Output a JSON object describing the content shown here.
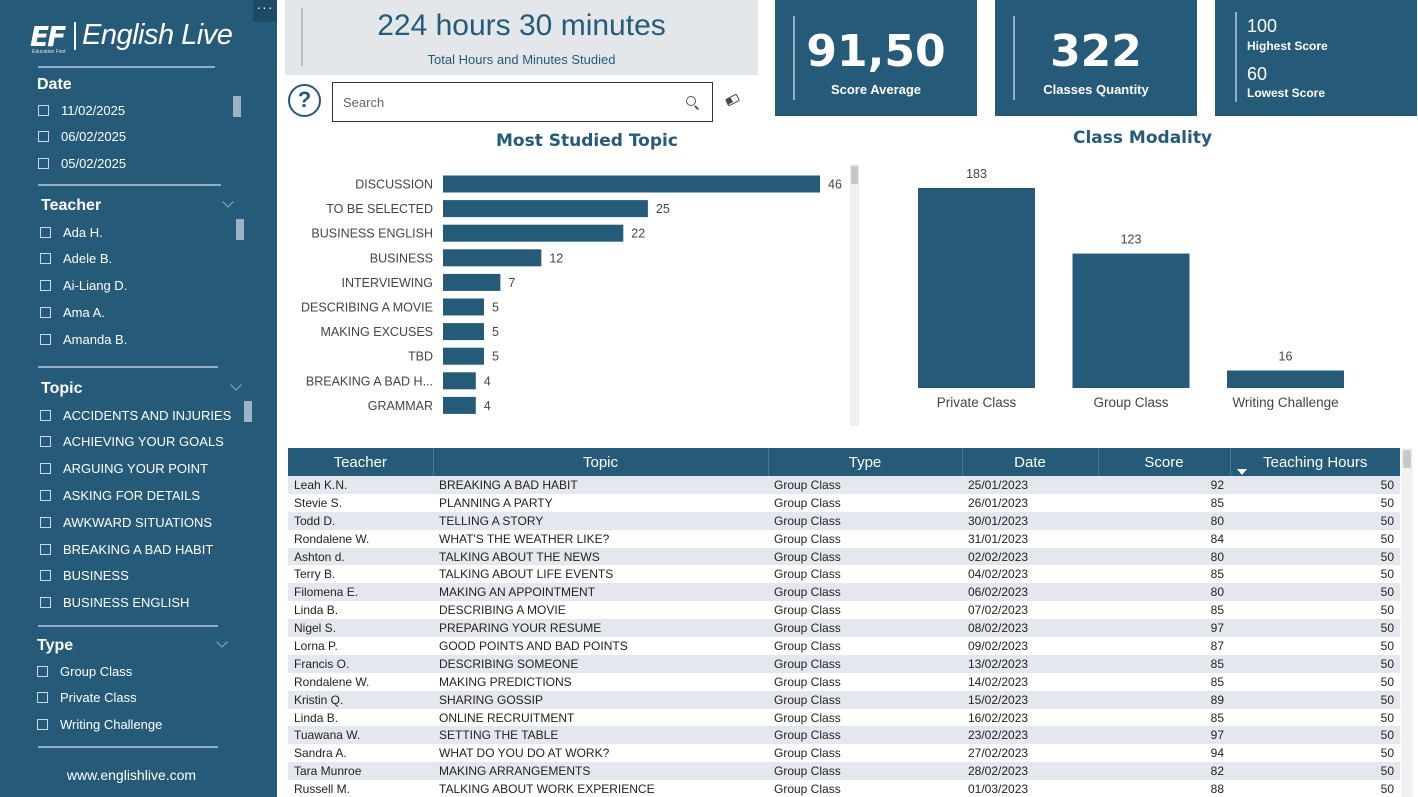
{
  "sidebar": {
    "more_label": "···",
    "logo": {
      "ef": "EF",
      "ef_sub": "Education First",
      "name": "English Live"
    },
    "date_filter": {
      "title": "Date",
      "items": [
        "11/02/2025",
        "06/02/2025",
        "05/02/2025"
      ]
    },
    "teacher_filter": {
      "title": "Teacher",
      "items": [
        "Ada H.",
        "Adele B.",
        "Ai-Liang D.",
        "Ama A.",
        "Amanda B."
      ]
    },
    "topic_filter": {
      "title": "Topic",
      "items": [
        "ACCIDENTS AND INJURIES",
        "ACHIEVING YOUR GOALS",
        "ARGUING YOUR POINT",
        "ASKING FOR DETAILS",
        "AWKWARD SITUATIONS",
        "BREAKING A BAD HABIT",
        "BUSINESS",
        "BUSINESS ENGLISH"
      ]
    },
    "type_filter": {
      "title": "Type",
      "items": [
        "Group Class",
        "Private Class",
        "Writing Challenge"
      ]
    },
    "website": "www.englishlive.com"
  },
  "kpis": {
    "hours": {
      "value": "224 hours 30 minutes",
      "label": "Total Hours and Minutes Studied"
    },
    "score_average": {
      "value": "91,50",
      "label": "Score Average"
    },
    "classes_quantity": {
      "value": "322",
      "label": "Classes Quantity"
    },
    "scores": {
      "highest_value": "100",
      "highest_label": "Highest Score",
      "lowest_value": "60",
      "lowest_label": "Lowest Score"
    }
  },
  "search": {
    "placeholder": "Search",
    "help_label": "?"
  },
  "chart_data": [
    {
      "type": "bar",
      "orientation": "horizontal",
      "title": "Most Studied Topic",
      "categories": [
        "DISCUSSION",
        "TO BE SELECTED",
        "BUSINESS ENGLISH",
        "BUSINESS",
        "INTERVIEWING",
        "DESCRIBING A MOVIE",
        "MAKING EXCUSES",
        "TBD",
        "BREAKING A BAD H...",
        "GRAMMAR"
      ],
      "values": [
        46,
        25,
        22,
        12,
        7,
        5,
        5,
        5,
        4,
        4
      ],
      "color": "#255a78"
    },
    {
      "type": "bar",
      "orientation": "vertical",
      "title": "Class Modality",
      "categories": [
        "Private Class",
        "Group Class",
        "Writing Challenge"
      ],
      "values": [
        183,
        123,
        16
      ],
      "color": "#255a78"
    }
  ],
  "table": {
    "columns": [
      "Teacher",
      "Topic",
      "Type",
      "Date",
      "Score",
      "Teaching Hours"
    ],
    "rows": [
      [
        "Leah K.N.",
        "BREAKING A BAD HABIT",
        "Group Class",
        "25/01/2023",
        "92",
        "50"
      ],
      [
        "Stevie S.",
        "PLANNING A PARTY",
        "Group Class",
        "26/01/2023",
        "85",
        "50"
      ],
      [
        "Todd D.",
        "TELLING A STORY",
        "Group Class",
        "30/01/2023",
        "80",
        "50"
      ],
      [
        "Rondalene W.",
        "WHAT'S THE WEATHER LIKE?",
        "Group Class",
        "31/01/2023",
        "84",
        "50"
      ],
      [
        "Ashton d.",
        "TALKING ABOUT THE NEWS",
        "Group Class",
        "02/02/2023",
        "80",
        "50"
      ],
      [
        "Terry B.",
        "TALKING ABOUT LIFE EVENTS",
        "Group Class",
        "04/02/2023",
        "85",
        "50"
      ],
      [
        "Filomena E.",
        "MAKING AN APPOINTMENT",
        "Group Class",
        "06/02/2023",
        "80",
        "50"
      ],
      [
        "Linda B.",
        "DESCRIBING A MOVIE",
        "Group Class",
        "07/02/2023",
        "85",
        "50"
      ],
      [
        "Nigel S.",
        "PREPARING YOUR RESUME",
        "Group Class",
        "08/02/2023",
        "97",
        "50"
      ],
      [
        "Lorna P.",
        "GOOD POINTS AND BAD POINTS",
        "Group Class",
        "09/02/2023",
        "87",
        "50"
      ],
      [
        "Francis O.",
        "DESCRIBING SOMEONE",
        "Group Class",
        "13/02/2023",
        "85",
        "50"
      ],
      [
        "Rondalene W.",
        "MAKING PREDICTIONS",
        "Group Class",
        "14/02/2023",
        "85",
        "50"
      ],
      [
        "Kristin Q.",
        "SHARING GOSSIP",
        "Group Class",
        "15/02/2023",
        "89",
        "50"
      ],
      [
        "Linda B.",
        "ONLINE RECRUITMENT",
        "Group Class",
        "16/02/2023",
        "85",
        "50"
      ],
      [
        "Tuawana W.",
        "SETTING THE TABLE",
        "Group Class",
        "23/02/2023",
        "97",
        "50"
      ],
      [
        "Sandra A.",
        "WHAT DO YOU DO AT WORK?",
        "Group Class",
        "27/02/2023",
        "94",
        "50"
      ],
      [
        "Tara Munroe",
        "MAKING ARRANGEMENTS",
        "Group Class",
        "28/02/2023",
        "82",
        "50"
      ],
      [
        "Russell M.",
        "TALKING ABOUT WORK EXPERIENCE",
        "Group Class",
        "01/03/2023",
        "88",
        "50"
      ]
    ]
  },
  "icons": {
    "help": "question-icon",
    "search": "search-icon",
    "clear": "eraser-icon",
    "sort": "sort-desc-icon"
  },
  "colors": {
    "primary": "#255a78",
    "card_gray": "#e4e7ea",
    "row_alt": "#e4e8ee"
  }
}
